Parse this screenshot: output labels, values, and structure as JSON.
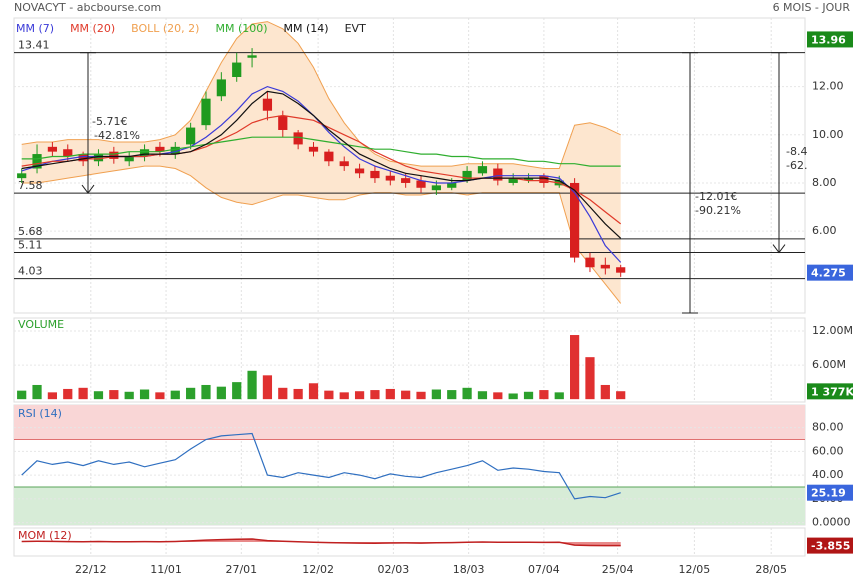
{
  "header": {
    "title": "NOVACYT - abcbourse.com",
    "period": "6 MOIS - JOUR"
  },
  "x_axis": {
    "xlim": [
      -0.5,
      51
    ],
    "ticks": [
      {
        "value": 4.5,
        "label": "22/12"
      },
      {
        "value": 9.4,
        "label": "11/01"
      },
      {
        "value": 14.3,
        "label": "27/01"
      },
      {
        "value": 19.3,
        "label": "12/02"
      },
      {
        "value": 24.2,
        "label": "02/03"
      },
      {
        "value": 29.1,
        "label": "18/03"
      },
      {
        "value": 34,
        "label": "07/04"
      },
      {
        "value": 38.8,
        "label": "25/04"
      },
      {
        "value": 43.8,
        "label": "12/05"
      },
      {
        "value": 48.8,
        "label": "28/05"
      }
    ]
  },
  "chart_data": [
    {
      "type": "candlestick",
      "open": [
        8.2,
        8.6,
        9.5,
        9.4,
        9.2,
        8.9,
        9.3,
        8.9,
        9.1,
        9.5,
        9.2,
        9.6,
        10.4,
        11.6,
        12.4,
        13.2,
        11.5,
        10.8,
        10.1,
        9.5,
        9.3,
        8.9,
        8.6,
        8.5,
        8.3,
        8.2,
        8.1,
        7.7,
        7.8,
        8.1,
        8.4,
        8.6,
        8.0,
        8.1,
        8.3,
        7.9,
        8.0,
        4.9,
        4.6,
        4.5
      ],
      "high": [
        8.6,
        9.6,
        9.7,
        9.6,
        9.3,
        9.4,
        9.5,
        9.3,
        9.6,
        9.7,
        9.7,
        10.5,
        11.8,
        12.6,
        13.4,
        13.6,
        11.8,
        11.0,
        10.2,
        9.7,
        9.4,
        9.1,
        8.8,
        8.7,
        8.5,
        8.4,
        8.3,
        8.1,
        8.2,
        8.7,
        8.9,
        8.8,
        8.4,
        8.4,
        8.4,
        8.3,
        8.2,
        5.1,
        4.9,
        4.6
      ],
      "low": [
        8.0,
        8.4,
        9.1,
        8.9,
        8.7,
        8.7,
        8.8,
        8.7,
        8.9,
        9.1,
        9.0,
        9.4,
        10.2,
        11.4,
        12.2,
        12.8,
        10.6,
        9.9,
        9.4,
        9.1,
        8.7,
        8.5,
        8.2,
        8.0,
        7.9,
        7.8,
        7.6,
        7.5,
        7.7,
        8.0,
        8.3,
        7.9,
        7.9,
        8.0,
        7.8,
        7.8,
        4.7,
        4.3,
        4.2,
        4.1
      ],
      "close": [
        8.4,
        9.2,
        9.3,
        9.1,
        8.9,
        9.2,
        9.0,
        9.1,
        9.4,
        9.3,
        9.5,
        10.3,
        11.5,
        12.3,
        13.0,
        13.3,
        11.0,
        10.2,
        9.6,
        9.3,
        8.9,
        8.7,
        8.4,
        8.2,
        8.1,
        8.0,
        7.8,
        7.9,
        8.0,
        8.5,
        8.7,
        8.1,
        8.2,
        8.2,
        8.0,
        8.1,
        4.9,
        4.5,
        4.45,
        4.275
      ],
      "colors": {
        "up": "#1f9a1f",
        "down": "#d81f1f"
      },
      "series": [
        {
          "name": "MM (7)",
          "color": "#3a3ad8",
          "values": [
            8.5,
            8.7,
            8.9,
            9.0,
            9.1,
            9.1,
            9.1,
            9.1,
            9.1,
            9.2,
            9.3,
            9.5,
            9.9,
            10.4,
            11.0,
            11.7,
            12.0,
            11.8,
            11.4,
            10.8,
            10.1,
            9.5,
            9.0,
            8.7,
            8.5,
            8.3,
            8.1,
            8.0,
            8.0,
            8.1,
            8.2,
            8.3,
            8.3,
            8.3,
            8.3,
            8.2,
            7.6,
            6.6,
            5.4,
            4.7
          ]
        },
        {
          "name": "MM (20)",
          "color": "#e03a2a",
          "values": [
            8.7,
            8.8,
            8.9,
            8.9,
            9.0,
            9.0,
            9.1,
            9.1,
            9.1,
            9.2,
            9.2,
            9.3,
            9.5,
            9.8,
            10.1,
            10.5,
            10.7,
            10.8,
            10.7,
            10.6,
            10.3,
            10.0,
            9.7,
            9.3,
            9.0,
            8.7,
            8.5,
            8.4,
            8.3,
            8.2,
            8.2,
            8.2,
            8.2,
            8.1,
            8.1,
            8.0,
            7.7,
            7.3,
            6.8,
            6.3
          ]
        },
        {
          "name": "MM (100)",
          "color": "#2fae2f",
          "values": [
            9.0,
            9.0,
            9.1,
            9.1,
            9.2,
            9.2,
            9.2,
            9.3,
            9.3,
            9.3,
            9.4,
            9.5,
            9.6,
            9.7,
            9.8,
            9.9,
            9.9,
            9.9,
            9.9,
            9.8,
            9.7,
            9.6,
            9.5,
            9.4,
            9.4,
            9.3,
            9.2,
            9.2,
            9.1,
            9.1,
            9.0,
            9.0,
            9.0,
            8.9,
            8.9,
            8.8,
            8.8,
            8.7,
            8.7,
            8.7
          ]
        },
        {
          "name": "MM (14)",
          "color": "#111111",
          "values": [
            8.6,
            8.7,
            8.8,
            8.9,
            9.0,
            9.1,
            9.1,
            9.1,
            9.2,
            9.2,
            9.2,
            9.3,
            9.6,
            10.0,
            10.6,
            11.3,
            11.8,
            11.7,
            11.3,
            10.8,
            10.2,
            9.7,
            9.2,
            8.9,
            8.6,
            8.4,
            8.3,
            8.2,
            8.1,
            8.1,
            8.2,
            8.2,
            8.2,
            8.2,
            8.2,
            8.1,
            7.7,
            7.0,
            6.3,
            5.7
          ]
        }
      ],
      "bands": {
        "name": "BOLL (20, 2)",
        "color": "#f0a050",
        "fill": "#fde6cf",
        "upper": [
          9.6,
          9.7,
          9.7,
          9.8,
          9.8,
          9.8,
          9.7,
          9.7,
          9.7,
          9.8,
          10.0,
          10.6,
          11.8,
          13.0,
          14.0,
          14.6,
          14.7,
          14.4,
          13.8,
          12.8,
          11.5,
          10.5,
          9.7,
          9.2,
          8.9,
          8.8,
          8.7,
          8.7,
          8.7,
          8.8,
          8.8,
          8.8,
          8.8,
          8.7,
          8.6,
          8.6,
          10.4,
          10.5,
          10.3,
          10.0
        ],
        "lower": [
          8.0,
          8.0,
          8.1,
          8.2,
          8.3,
          8.4,
          8.5,
          8.6,
          8.7,
          8.7,
          8.6,
          8.3,
          7.8,
          7.4,
          7.2,
          7.1,
          7.3,
          7.5,
          7.5,
          7.4,
          7.3,
          7.3,
          7.5,
          7.6,
          7.6,
          7.5,
          7.5,
          7.6,
          7.6,
          7.5,
          7.6,
          7.6,
          7.6,
          7.6,
          7.6,
          7.6,
          5.4,
          4.6,
          3.8,
          3.0
        ]
      },
      "events_label": "EVT",
      "ylim": [
        2.6,
        14.85
      ],
      "yticks": [
        {
          "value": 6,
          "label": "6.00"
        },
        {
          "value": 8,
          "label": "8.00"
        },
        {
          "value": 10,
          "label": "10.00"
        },
        {
          "value": 12,
          "label": "12.00"
        }
      ],
      "levels": [
        13.41,
        7.58,
        5.68,
        5.11,
        4.03
      ],
      "annotations": [
        "-5.71€",
        "-42.81%",
        "-12.01€",
        "-90.21%",
        "-8.4",
        "-62."
      ],
      "badges": [
        {
          "value": 13.96,
          "color": "#1a8a1a"
        },
        {
          "value": 4.275,
          "color": "#3a66dd"
        }
      ]
    },
    {
      "type": "bar",
      "title": "VOLUME",
      "color": "#2ca02c",
      "colors_down": "#e03030",
      "values": [
        1.5,
        2.5,
        1.2,
        1.8,
        2.0,
        1.4,
        1.6,
        1.3,
        1.7,
        1.2,
        1.5,
        2.0,
        2.5,
        2.2,
        3.0,
        5.0,
        4.2,
        2.0,
        1.8,
        2.8,
        1.5,
        1.2,
        1.4,
        1.6,
        1.8,
        1.5,
        1.3,
        1.7,
        1.6,
        2.0,
        1.4,
        1.2,
        1.0,
        1.3,
        1.6,
        1.2,
        11.3,
        7.4,
        2.5,
        1.4
      ],
      "ylim": [
        -0.5,
        14.3
      ],
      "yticks": [
        {
          "value": 6,
          "label": "6.00M"
        },
        {
          "value": 12,
          "label": "12.00M"
        }
      ],
      "badges": [
        {
          "value": 1.377,
          "label": "1 377K",
          "color": "#1a8a1a"
        }
      ]
    },
    {
      "type": "line",
      "title": "RSI (14)",
      "color": "#2f6fc0",
      "values": [
        40,
        52,
        49,
        51,
        48,
        52,
        49,
        51,
        47,
        50,
        53,
        62,
        70,
        73,
        74,
        75,
        40,
        38,
        42,
        40,
        38,
        42,
        40,
        37,
        41,
        39,
        38,
        42,
        45,
        48,
        52,
        44,
        46,
        45,
        43,
        42,
        20,
        22,
        21,
        25.19
      ],
      "ylim": [
        -2,
        99
      ],
      "yticks": [
        {
          "value": 0,
          "label": "0.0000"
        },
        {
          "value": 20,
          "label": "20.00"
        },
        {
          "value": 40,
          "label": "40.00"
        },
        {
          "value": 60,
          "label": "60.00"
        },
        {
          "value": 80,
          "label": "80.00"
        }
      ],
      "zones": [
        {
          "from": 70,
          "to": 99,
          "color": "#f9d6d6",
          "line": "#e07070"
        },
        {
          "from": -2,
          "to": 30,
          "color": "#d7ecd7",
          "line": "#5aa55a"
        }
      ],
      "badges": [
        {
          "value": 25.19,
          "color": "#3a66dd"
        }
      ]
    },
    {
      "type": "area",
      "title": "MOM (12)",
      "color": "#c02020",
      "values": [
        0.5,
        0.8,
        0.6,
        0.4,
        0.3,
        0.5,
        0.2,
        0.3,
        0.4,
        0.2,
        0.5,
        1.2,
        2.0,
        2.6,
        3.0,
        3.2,
        1.5,
        0.8,
        0.3,
        -0.2,
        -0.6,
        -1.0,
        -1.2,
        -1.3,
        -1.1,
        -1.0,
        -1.2,
        -0.9,
        -0.6,
        -0.3,
        0,
        -0.2,
        -0.3,
        -0.2,
        -0.4,
        -0.3,
        -3.3,
        -3.7,
        -3.9,
        -3.855
      ],
      "ylim": [
        -15,
        15
      ],
      "badges": [
        {
          "value": -3.855,
          "color": "#b01515"
        }
      ]
    }
  ]
}
